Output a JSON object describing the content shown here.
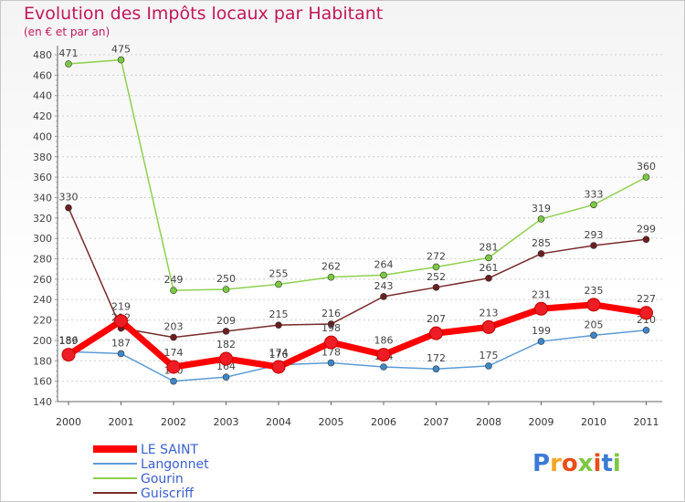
{
  "title": "Evolution des Impôts locaux par Habitant",
  "subtitle": "(en € et par an)",
  "brand": "Proxiti",
  "chart_data": {
    "type": "line",
    "categories": [
      "2000",
      "2001",
      "2002",
      "2003",
      "2004",
      "2005",
      "2006",
      "2007",
      "2008",
      "2009",
      "2010",
      "2011"
    ],
    "ylim": [
      140,
      480
    ],
    "yticks": [
      140,
      160,
      180,
      200,
      220,
      240,
      260,
      280,
      300,
      320,
      340,
      360,
      380,
      400,
      420,
      440,
      460,
      480
    ],
    "xlabel": "",
    "ylabel": "",
    "grid": true,
    "legend_position": "bottom-left",
    "series": [
      {
        "name": "Gourin",
        "color": "#8fd14f",
        "point_color": "#7ac943",
        "values": [
          471,
          475,
          249,
          250,
          255,
          262,
          264,
          272,
          281,
          319,
          333,
          360
        ],
        "labels": [
          "471",
          "475",
          "249",
          "250",
          "255",
          "262",
          "264",
          "272",
          "281",
          "319",
          "333",
          "360"
        ]
      },
      {
        "name": "Guiscriff",
        "color": "#7a2a2a",
        "point_color": "#6b1f1f",
        "values": [
          330,
          212,
          203,
          209,
          215,
          216,
          243,
          252,
          261,
          285,
          293,
          299
        ],
        "labels": [
          "330",
          "212",
          "203",
          "209",
          "215",
          "216",
          "243",
          "252",
          "261",
          "285",
          "293",
          "299"
        ]
      },
      {
        "name": "Langonnet",
        "color": "#5b9bd5",
        "point_color": "#3f86c8",
        "values": [
          189,
          187,
          160,
          164,
          176,
          178,
          174,
          172,
          175,
          199,
          205,
          210
        ],
        "labels": [
          "189",
          "187",
          "160",
          "164",
          "176",
          "178",
          "174",
          "172",
          "175",
          "199",
          "205",
          "210"
        ]
      },
      {
        "name": "LE SAINT",
        "color": "#ff0000",
        "point_color": "#ee1c24",
        "values": [
          186,
          219,
          174,
          182,
          174,
          198,
          186,
          207,
          213,
          231,
          235,
          227
        ],
        "labels": [
          "186",
          "219",
          "174",
          "182",
          "174",
          "198",
          "186",
          "207",
          "213",
          "231",
          "235",
          "227"
        ]
      }
    ],
    "legend": [
      {
        "name": "LE SAINT",
        "color": "#ff0000"
      },
      {
        "name": "Langonnet",
        "color": "#5b9bd5"
      },
      {
        "name": "Gourin",
        "color": "#8fd14f"
      },
      {
        "name": "Guiscriff",
        "color": "#7a2a2a"
      }
    ]
  }
}
